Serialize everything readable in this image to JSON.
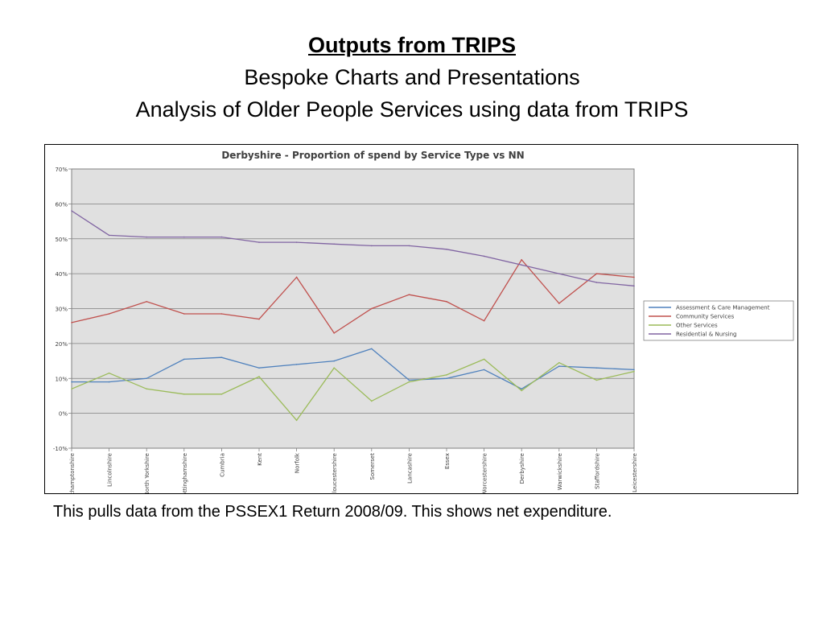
{
  "slide": {
    "title": "Outputs from TRIPS",
    "subtitle1": "Bespoke Charts and Presentations",
    "subtitle2": "Analysis of Older People Services using data from TRIPS",
    "caption": "This pulls data from the PSSEX1 Return 2008/09. This shows net expenditure."
  },
  "chart_data": {
    "type": "line",
    "title": "Derbyshire - Proportion of spend by Service Type vs NN",
    "xlabel": "",
    "ylabel": "",
    "ylim": [
      -10,
      70
    ],
    "y_ticks": [
      -10,
      0,
      10,
      20,
      30,
      40,
      50,
      60,
      70
    ],
    "y_tick_labels": [
      "-10%",
      "0%",
      "10%",
      "20%",
      "30%",
      "40%",
      "50%",
      "60%",
      "70%"
    ],
    "grid": true,
    "legend_position": "right",
    "plot_background": "#e0e0e0",
    "categories": [
      "Northamptonshire",
      "Lincolnshire",
      "North Yorkshire",
      "Nottinghamshire",
      "Cumbria",
      "Kent",
      "Norfolk",
      "Gloucestershire",
      "Somerset",
      "Lancashire",
      "Essex",
      "Worcestershire",
      "Derbyshire",
      "Warwickshire",
      "Staffordshire",
      "Leicestershire"
    ],
    "series": [
      {
        "name": "Assessment & Care Management",
        "color": "#4f81bd",
        "values": [
          9,
          9,
          10,
          15.5,
          16,
          13,
          14,
          15,
          18.5,
          9.5,
          10,
          12.5,
          7,
          13.5,
          13,
          12.5
        ]
      },
      {
        "name": "Community Services",
        "color": "#c0504d",
        "values": [
          26,
          28.5,
          32,
          28.5,
          28.5,
          27,
          39,
          23,
          30,
          34,
          32,
          26.5,
          44,
          31.5,
          40,
          39
        ]
      },
      {
        "name": "Other Services",
        "color": "#9bbb59",
        "values": [
          7,
          11.5,
          7,
          5.5,
          5.5,
          10.5,
          -2,
          13,
          3.5,
          9,
          11,
          15.5,
          6.5,
          14.5,
          9.5,
          12
        ]
      },
      {
        "name": "Residential & Nursing",
        "color": "#8064a2",
        "values": [
          58,
          51,
          50.5,
          50.5,
          50.5,
          49,
          49,
          48.5,
          48,
          48,
          47,
          45,
          42.5,
          40,
          37.5,
          36.5
        ]
      }
    ]
  }
}
